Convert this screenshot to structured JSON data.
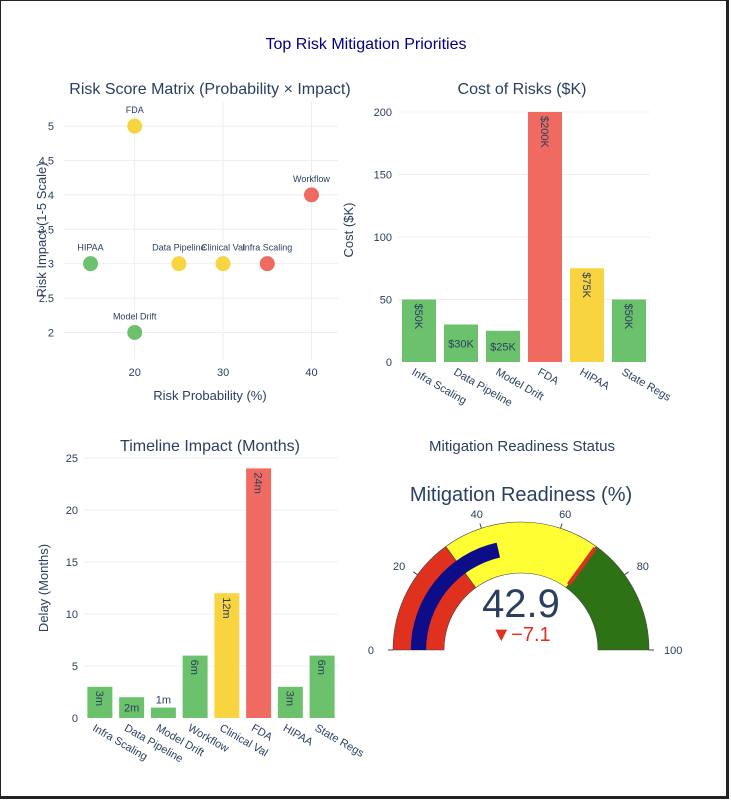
{
  "page_title": "Top Risk Mitigation Priorities",
  "colors": {
    "title": "#000080",
    "text": "#2a3f5f",
    "green": "#6cc26c",
    "yellow": "#f9d441",
    "red": "#ef6a60",
    "grid": "#ebeff4",
    "gauge_bar": "#0d0d8a",
    "gauge_low": "#e0301e",
    "gauge_mid": "#ffff33",
    "gauge_high": "#2d7315",
    "gauge_threshold": "#e0301e",
    "delta_down": "#e0301e"
  },
  "chart_data": [
    {
      "type": "scatter",
      "title": "Risk Score Matrix (Probability × Impact)",
      "xlabel": "Risk Probability (%)",
      "ylabel": "Risk Impact (1-5 Scale)",
      "xlim": [
        12,
        43
      ],
      "ylim": [
        1.6,
        5.35
      ],
      "xticks": [
        20,
        30,
        40
      ],
      "yticks": [
        2,
        2.5,
        3,
        3.5,
        4,
        4.5,
        5
      ],
      "points": [
        {
          "label": "Infra Scaling",
          "x": 35,
          "y": 3,
          "color": "red"
        },
        {
          "label": "Data Pipeline",
          "x": 25,
          "y": 3,
          "color": "yellow"
        },
        {
          "label": "Model Drift",
          "x": 20,
          "y": 2,
          "color": "green"
        },
        {
          "label": "Workflow",
          "x": 40,
          "y": 4,
          "color": "red"
        },
        {
          "label": "Clinical Val",
          "x": 30,
          "y": 3,
          "color": "yellow"
        },
        {
          "label": "FDA",
          "x": 20,
          "y": 5,
          "color": "yellow"
        },
        {
          "label": "HIPAA",
          "x": 15,
          "y": 3,
          "color": "green"
        }
      ]
    },
    {
      "type": "bar",
      "title": "Cost of Risks ($K)",
      "ylabel": "Cost ($K)",
      "ylim": [
        0,
        200
      ],
      "yticks": [
        0,
        50,
        100,
        150,
        200
      ],
      "categories": [
        "Infra Scaling",
        "Data Pipeline",
        "Model Drift",
        "FDA",
        "HIPAA",
        "State Regs"
      ],
      "values": [
        50,
        30,
        25,
        200,
        75,
        50
      ],
      "labels": [
        "$50K",
        "$30K",
        "$25K",
        "$200K",
        "$75K",
        "$50K"
      ],
      "colors": [
        "green",
        "green",
        "green",
        "red",
        "yellow",
        "green"
      ]
    },
    {
      "type": "bar",
      "title": "Timeline Impact (Months)",
      "ylabel": "Delay (Months)",
      "ylim": [
        0,
        25
      ],
      "yticks": [
        0,
        5,
        10,
        15,
        20,
        25
      ],
      "categories": [
        "Infra Scaling",
        "Data Pipeline",
        "Model Drift",
        "Workflow",
        "Clinical Val",
        "FDA",
        "HIPAA",
        "State Regs"
      ],
      "values": [
        3,
        2,
        1,
        6,
        12,
        24,
        3,
        6
      ],
      "labels": [
        "3m",
        "2m",
        "1m",
        "6m",
        "12m",
        "24m",
        "3m",
        "6m"
      ],
      "colors": [
        "green",
        "green",
        "green",
        "green",
        "yellow",
        "red",
        "green",
        "green"
      ]
    },
    {
      "type": "gauge",
      "title": "Mitigation Readiness Status",
      "gauge_title": "Mitigation Readiness (%)",
      "value": 42.9,
      "value_text": "42.9",
      "delta_text": "▼−7.1",
      "range": [
        0,
        100
      ],
      "ticks": [
        0,
        20,
        40,
        60,
        80,
        100
      ],
      "steps": [
        {
          "range": [
            0,
            30
          ],
          "color": "gauge_low"
        },
        {
          "range": [
            30,
            70
          ],
          "color": "gauge_mid"
        },
        {
          "range": [
            70,
            100
          ],
          "color": "gauge_high"
        }
      ],
      "threshold": 70
    }
  ]
}
